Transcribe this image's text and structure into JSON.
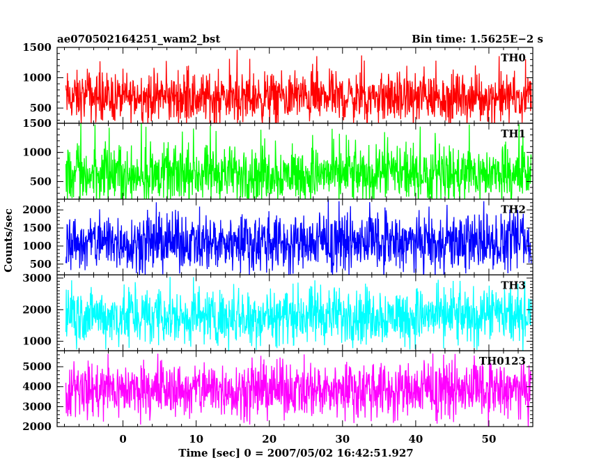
{
  "chart_data": {
    "type": "line",
    "title_left": "ae070502164251_wam2_bst",
    "title_right": "Bin time: 1.5625E−2 s",
    "ylabel": "Counts/sec",
    "xlabel": "Time [sec] 0 = 2007/05/02 16:42:51.927",
    "xlim": [
      -9,
      56
    ],
    "x_data_range": [
      -7.8,
      55.8
    ],
    "x_ticks": [
      0,
      10,
      20,
      30,
      40,
      50
    ],
    "x_tick_labels": [
      "0",
      "10",
      "20",
      "30",
      "40",
      "50"
    ],
    "panels": [
      {
        "name": "TH0",
        "color": "#ff0000",
        "ylim": [
          250,
          1500
        ],
        "y_ticks": [
          500,
          1000,
          1500
        ],
        "y_tick_labels": [
          "500",
          "1000",
          "1500"
        ],
        "band": [
          150,
          1480
        ],
        "core": [
          300,
          1050
        ],
        "mean": 650
      },
      {
        "name": "TH1",
        "color": "#00ff00",
        "ylim": [
          200,
          1500
        ],
        "y_ticks": [
          500,
          1000,
          1500
        ],
        "y_tick_labels": [
          "500",
          "1000",
          "1500"
        ],
        "band": [
          50,
          1500
        ],
        "core": [
          200,
          1050
        ],
        "mean": 650
      },
      {
        "name": "TH2",
        "color": "#0000ff",
        "ylim": [
          200,
          2300
        ],
        "y_ticks": [
          500,
          1000,
          1500,
          2000
        ],
        "y_tick_labels": [
          "500",
          "1000",
          "1500",
          "2000"
        ],
        "band": [
          100,
          2300
        ],
        "core": [
          400,
          1800
        ],
        "mean": 1100
      },
      {
        "name": "TH3",
        "color": "#00ffff",
        "ylim": [
          700,
          3100
        ],
        "y_ticks": [
          1000,
          2000,
          3000
        ],
        "y_tick_labels": [
          "1000",
          "2000",
          "3000"
        ],
        "band": [
          700,
          3000
        ],
        "core": [
          1000,
          2600
        ],
        "mean": 1800
      },
      {
        "name": "TH0123",
        "color": "#ff00ff",
        "ylim": [
          2000,
          5800
        ],
        "y_ticks": [
          2000,
          3000,
          4000,
          5000
        ],
        "y_tick_labels": [
          "2000",
          "3000",
          "4000",
          "5000"
        ],
        "band": [
          2000,
          5700
        ],
        "core": [
          2600,
          5100
        ],
        "mean": 3850
      }
    ]
  }
}
